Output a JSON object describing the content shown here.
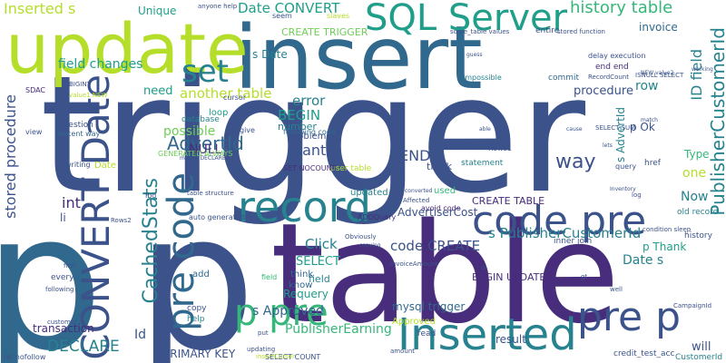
{
  "palette": {
    "dark_purple": "#440154",
    "purple": "#472d7b",
    "indigo": "#3b528b",
    "blue": "#31688e",
    "teal": "#26828e",
    "green_teal": "#1f9e89",
    "green": "#35b779",
    "light_green": "#6ece58",
    "lime": "#b5de2b",
    "yellow": "#fde725"
  },
  "words": [
    "trigger",
    "p",
    "table",
    "insert",
    "update",
    "Inserted",
    "record",
    "SQL Server",
    "CONVERT Date",
    "code pre",
    "pre code",
    "p pre",
    "pre p",
    "set",
    "Date CONVERT",
    "history table",
    "PublisherCustomerId",
    "s PublisherCustomerId",
    "AdvertId",
    "way",
    "CachedStats",
    "another table",
    "Inserted s",
    "Unique",
    "CREATE TRIGGER",
    "field changes",
    "s Date",
    "invoice",
    "row",
    "ID field",
    "procedure",
    "stored procedure",
    "BEGIN",
    "error",
    "possible",
    "NULL",
    "want",
    "END",
    "int",
    "li",
    "Click",
    "code CREATE",
    "DECLARE",
    "transaction",
    "PRIMARY KEY",
    "Id",
    "Requery",
    "SELECT",
    "s Approved",
    "PublisherEarning",
    "Date s",
    "p Thank",
    "Now",
    "one",
    "Type",
    "mysql trigger",
    "Approved",
    "result",
    "will",
    "credit_test_acc",
    "CustomerId",
    "AdvertiserCost",
    "CREATE TABLE",
    "BEGIN UPDATE",
    "inner join",
    "need",
    "number",
    "problem",
    "following code",
    "track",
    "statement",
    "user table",
    "updated",
    "used",
    "avoid code",
    "s AdvertId",
    "p Ok",
    "Type",
    "history",
    "CampaignId",
    "old record",
    "code pre",
    "field",
    "think",
    "know",
    "SELECT COUNT",
    "rel nofollow",
    "customer",
    "question",
    "decent way",
    "GENERATED ALWAYS",
    "SET NOCOUNT",
    "BIGINT",
    "SDAC",
    "entire",
    "commit",
    "end end",
    "delay execution",
    "impossible",
    "RecordCount",
    "loop",
    "database",
    "Rows1",
    "copy",
    "help",
    "add",
    "Date",
    "writing",
    "ADOQuery",
    "Obviously",
    "field",
    "auto generated",
    "table structure",
    "cursor",
    "seem",
    "slaves",
    "some_table values",
    "anyone help",
    "condition sleep",
    "invoiceAmount",
    "Rows2",
    "first",
    "every",
    "following",
    "updating",
    "amount",
    "put",
    "read",
    "insertCursor",
    "view",
    "ISNULL SELECT",
    "stored function",
    "value1 NEW",
    "lbd",
    "give",
    "SELECT SUM",
    "Affected",
    "converted",
    "able",
    "cause",
    "lets",
    "href",
    "query",
    "gt",
    "well",
    "ol",
    "log",
    "money DECLARE",
    "Inventory",
    "match",
    "guess",
    "working",
    "NEW value2",
    "copying"
  ]
}
